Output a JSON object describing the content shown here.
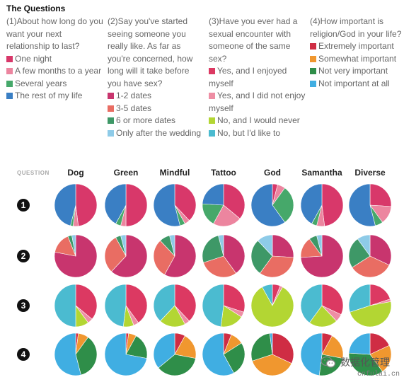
{
  "title": "The Questions",
  "questions": [
    {
      "text": "(1)About how long do you want your next relationship to last?",
      "options": [
        {
          "label": "One night",
          "color": "#d8386a"
        },
        {
          "label": "A few months to a year",
          "color": "#ec859f"
        },
        {
          "label": "Several years",
          "color": "#46a86a"
        },
        {
          "label": "The rest of my life",
          "color": "#3a7fc4"
        }
      ]
    },
    {
      "text": "(2)Say you've started seeing someone you really like. As far as you're concerned, how long will it take before you have sex?",
      "options": [
        {
          "label": "1-2 dates",
          "color": "#c8356e"
        },
        {
          "label": "3-5 dates",
          "color": "#e96d63"
        },
        {
          "label": "6 or more dates",
          "color": "#3e9867"
        },
        {
          "label": "Only after the wedding",
          "color": "#8ecbe8"
        }
      ]
    },
    {
      "text": "(3)Have you ever had a sexual encounter with someone of the same sex?",
      "options": [
        {
          "label": "Yes, and I enjoyed myself",
          "color": "#dc3962"
        },
        {
          "label": "Yes, and I did not enjoy myself",
          "color": "#ee8ea4"
        },
        {
          "label": "No, and I would never",
          "color": "#b3d633"
        },
        {
          "label": "No, but I'd like to",
          "color": "#4bbbd0"
        }
      ]
    },
    {
      "text": "(4)How important is religion/God in your life?",
      "options": [
        {
          "label": "Extremely important",
          "color": "#cf2d44"
        },
        {
          "label": "Somewhat important",
          "color": "#f0972f"
        },
        {
          "label": "Not very important",
          "color": "#2f8e49"
        },
        {
          "label": "Not important at all",
          "color": "#40aee2"
        }
      ]
    }
  ],
  "chart_data": {
    "type": "pie",
    "row_header": "QUESTION",
    "columns": [
      "Dog",
      "Green",
      "Mindful",
      "Tattoo",
      "God",
      "Samantha",
      "Diverse"
    ],
    "rows": [
      {
        "label": "1",
        "pies": [
          [
            48,
            4,
            2,
            46
          ],
          [
            50,
            4,
            4,
            42
          ],
          [
            38,
            4,
            4,
            54
          ],
          [
            36,
            22,
            18,
            24
          ],
          [
            4,
            6,
            30,
            60
          ],
          [
            48,
            6,
            4,
            42
          ],
          [
            26,
            14,
            6,
            54
          ]
        ]
      },
      {
        "label": "2",
        "pies": [
          [
            78,
            16,
            3,
            3
          ],
          [
            62,
            30,
            4,
            4
          ],
          [
            58,
            30,
            8,
            4
          ],
          [
            40,
            30,
            26,
            4
          ],
          [
            26,
            34,
            28,
            12
          ],
          [
            74,
            16,
            6,
            4
          ],
          [
            32,
            34,
            24,
            10
          ]
        ]
      },
      {
        "label": "3",
        "pies": [
          [
            36,
            4,
            10,
            50
          ],
          [
            40,
            4,
            8,
            48
          ],
          [
            38,
            4,
            20,
            38
          ],
          [
            30,
            4,
            18,
            48
          ],
          [
            6,
            2,
            84,
            8
          ],
          [
            32,
            6,
            22,
            40
          ],
          [
            20,
            2,
            48,
            30
          ]
        ]
      },
      {
        "label": "4",
        "pies": [
          [
            2,
            8,
            36,
            54
          ],
          [
            2,
            6,
            20,
            72
          ],
          [
            8,
            20,
            36,
            36
          ],
          [
            6,
            10,
            26,
            58
          ],
          [
            32,
            38,
            28,
            2
          ],
          [
            8,
            20,
            24,
            48
          ],
          [
            18,
            22,
            36,
            24
          ]
        ]
      }
    ]
  },
  "watermark": {
    "name": "数据化管理",
    "url": "cnfulai.cn"
  }
}
